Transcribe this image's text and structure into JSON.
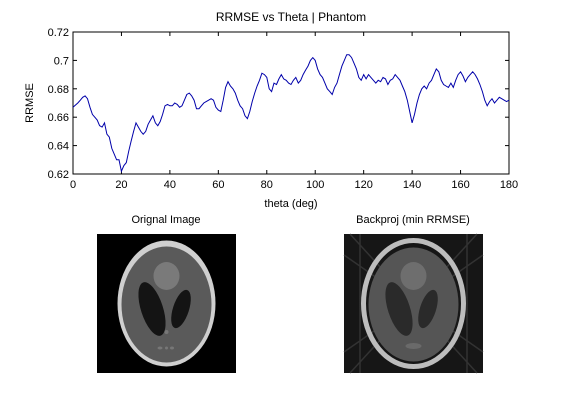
{
  "figure": {
    "background": "#ffffff"
  },
  "chart_data": [
    {
      "type": "line",
      "title": "RRMSE vs Theta | Phantom",
      "xlabel": "theta (deg)",
      "ylabel": "RRMSE",
      "xlim": [
        0,
        180
      ],
      "ylim": [
        0.62,
        0.72
      ],
      "xticks": [
        0,
        20,
        40,
        60,
        80,
        100,
        120,
        140,
        160,
        180
      ],
      "xtick_labels": [
        "0",
        "20",
        "40",
        "60",
        "80",
        "100",
        "120",
        "140",
        "160",
        "180"
      ],
      "yticks": [
        0.62,
        0.64,
        0.66,
        0.68,
        0.7,
        0.72
      ],
      "ytick_labels": [
        "0.62",
        "0.64",
        "0.66",
        "0.68",
        "0.7",
        "0.72"
      ],
      "grid": false,
      "line_color": "#0000aa",
      "series": [
        {
          "x": [
            0,
            2,
            3,
            4,
            5,
            6,
            7,
            8,
            9,
            10,
            11,
            12,
            13,
            14,
            15,
            16,
            17,
            18,
            19,
            20,
            21,
            22,
            23,
            24,
            25,
            26,
            27,
            28,
            29,
            30,
            31,
            32,
            33,
            34,
            35,
            36,
            37,
            38,
            39,
            40,
            41,
            42,
            43,
            44,
            45,
            46,
            47,
            48,
            49,
            50,
            51,
            52,
            53,
            54,
            55,
            56,
            57,
            58,
            59,
            60,
            61,
            62,
            63,
            64,
            65,
            66,
            67,
            68,
            69,
            70,
            71,
            72,
            73,
            74,
            75,
            76,
            77,
            78,
            79,
            80,
            81,
            82,
            83,
            84,
            85,
            86,
            87,
            88,
            89,
            90,
            91,
            92,
            93,
            94,
            95,
            96,
            97,
            98,
            99,
            100,
            101,
            102,
            103,
            104,
            105,
            106,
            107,
            108,
            109,
            110,
            111,
            112,
            113,
            114,
            115,
            116,
            117,
            118,
            119,
            120,
            121,
            122,
            123,
            124,
            125,
            126,
            127,
            128,
            129,
            130,
            131,
            132,
            133,
            134,
            135,
            136,
            137,
            138,
            139,
            140,
            141,
            142,
            143,
            144,
            145,
            146,
            147,
            148,
            149,
            150,
            151,
            152,
            153,
            154,
            155,
            156,
            157,
            158,
            159,
            160,
            161,
            162,
            163,
            164,
            165,
            166,
            167,
            168,
            169,
            170,
            171,
            172,
            173,
            174,
            175,
            176,
            177,
            178,
            179,
            180
          ],
          "y": [
            0.667,
            0.67,
            0.672,
            0.674,
            0.675,
            0.673,
            0.667,
            0.662,
            0.66,
            0.658,
            0.654,
            0.653,
            0.656,
            0.648,
            0.646,
            0.638,
            0.634,
            0.63,
            0.63,
            0.622,
            0.626,
            0.628,
            0.636,
            0.643,
            0.65,
            0.656,
            0.653,
            0.65,
            0.648,
            0.65,
            0.655,
            0.658,
            0.661,
            0.656,
            0.654,
            0.657,
            0.662,
            0.668,
            0.669,
            0.668,
            0.668,
            0.67,
            0.669,
            0.667,
            0.668,
            0.672,
            0.676,
            0.677,
            0.675,
            0.672,
            0.666,
            0.666,
            0.668,
            0.67,
            0.671,
            0.672,
            0.673,
            0.672,
            0.667,
            0.665,
            0.664,
            0.672,
            0.681,
            0.685,
            0.682,
            0.68,
            0.677,
            0.672,
            0.668,
            0.666,
            0.661,
            0.659,
            0.664,
            0.671,
            0.677,
            0.682,
            0.686,
            0.691,
            0.69,
            0.688,
            0.68,
            0.678,
            0.684,
            0.683,
            0.687,
            0.69,
            0.687,
            0.686,
            0.684,
            0.683,
            0.686,
            0.688,
            0.684,
            0.686,
            0.69,
            0.693,
            0.696,
            0.7,
            0.702,
            0.7,
            0.694,
            0.69,
            0.688,
            0.684,
            0.68,
            0.678,
            0.676,
            0.681,
            0.684,
            0.69,
            0.696,
            0.7,
            0.704,
            0.704,
            0.702,
            0.698,
            0.694,
            0.688,
            0.686,
            0.69,
            0.687,
            0.69,
            0.688,
            0.686,
            0.684,
            0.686,
            0.685,
            0.688,
            0.687,
            0.683,
            0.686,
            0.687,
            0.69,
            0.688,
            0.686,
            0.682,
            0.678,
            0.672,
            0.664,
            0.656,
            0.662,
            0.67,
            0.676,
            0.68,
            0.682,
            0.68,
            0.684,
            0.686,
            0.69,
            0.694,
            0.692,
            0.686,
            0.683,
            0.682,
            0.681,
            0.684,
            0.681,
            0.686,
            0.69,
            0.692,
            0.689,
            0.685,
            0.688,
            0.69,
            0.692,
            0.69,
            0.687,
            0.683,
            0.678,
            0.672,
            0.668,
            0.671,
            0.673,
            0.67,
            0.672,
            0.674,
            0.673,
            0.672,
            0.671,
            0.672
          ]
        }
      ]
    },
    {
      "type": "image",
      "title": "Orignal Image",
      "colormap": "gray"
    },
    {
      "type": "image",
      "title": "Backproj (min RRMSE)",
      "colormap": "gray"
    }
  ]
}
